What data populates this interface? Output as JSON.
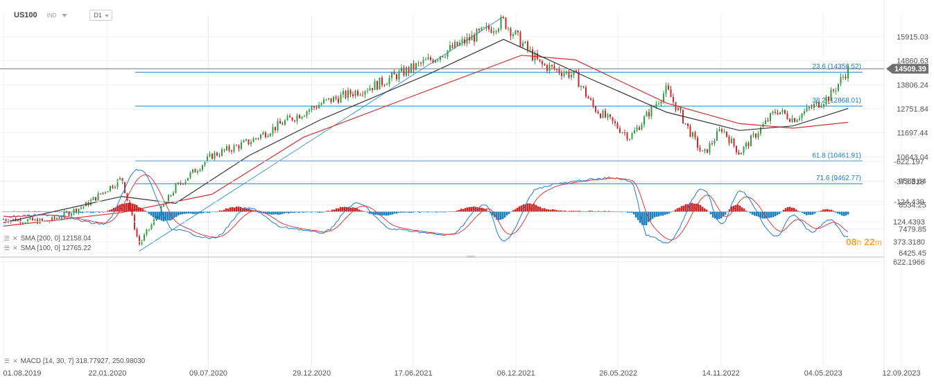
{
  "header": {
    "symbol": "US100",
    "instrument_type": "IND",
    "timeframe": "D1"
  },
  "timer": {
    "hours": "08",
    "hours_unit": "h",
    "minutes": "22",
    "minutes_unit": "m"
  },
  "indicators": {
    "sma200_label": "SMA [200, 0] 12158.04",
    "sma100_label": "SMA [100, 0] 12765.22",
    "macd_label": "MACD [14, 30, 7] 318.77927, 250.98030"
  },
  "colors": {
    "up": "#2e9e3e",
    "down": "#d0242b",
    "sma200": "#d32f2f",
    "sma100": "#333333",
    "fib": "#1a7fc1",
    "macd_line": "#1f7bd1",
    "signal_line": "#d9393e",
    "hist_pos": "#1b7fbf",
    "hist_neg": "#c92525",
    "price_tag": "#6f6f6f"
  },
  "chart_data": [
    {
      "type": "candlestick",
      "title": "US100",
      "timeframe": "D1",
      "x_tick_labels": [
        "01.08.2019",
        "22.01.2020",
        "09.07.2020",
        "29.12.2020",
        "17.06.2021",
        "06.12.2021",
        "26.05.2022",
        "14.11.2022",
        "04.05.2023",
        "12.09.2023"
      ],
      "y_tick_labels": [
        "15915.03",
        "14860.63",
        "13806.24",
        "12751.84",
        "11697.44",
        "10643.04",
        "9588.64",
        "8534.25",
        "7479.85",
        "6425.45"
      ],
      "last_price": "14509.39",
      "price_path": [
        [
          "01.08.2019",
          7900
        ],
        [
          "2019-10",
          7800
        ],
        [
          "2019-12",
          8500
        ],
        [
          "2020-02",
          9700
        ],
        [
          "2020-03",
          6800
        ],
        [
          "2020-05",
          9300
        ],
        [
          "2020-07",
          10700
        ],
        [
          "2020-09",
          11300
        ],
        [
          "2020-11",
          12200
        ],
        [
          "2021-01",
          13000
        ],
        [
          "2021-04",
          13800
        ],
        [
          "2021-07",
          14900
        ],
        [
          "2021-11",
          16600
        ],
        [
          "2022-01",
          14700
        ],
        [
          "2022-03",
          14200
        ],
        [
          "2022-04",
          12800
        ],
        [
          "2022-06",
          11500
        ],
        [
          "2022-08",
          13600
        ],
        [
          "2022-10",
          10700
        ],
        [
          "2022-11",
          11900
        ],
        [
          "2022-12",
          10800
        ],
        [
          "2023-02",
          12700
        ],
        [
          "2023-03",
          12300
        ],
        [
          "2023-05",
          13300
        ],
        [
          "2023-06",
          14500
        ]
      ],
      "sma200_path": [
        [
          "01.08.2019",
          7600
        ],
        [
          "2020-02",
          8200
        ],
        [
          "2020-07",
          9000
        ],
        [
          "2020-12",
          11500
        ],
        [
          "2021-06",
          13300
        ],
        [
          "2021-12",
          15100
        ],
        [
          "2022-03",
          14900
        ],
        [
          "2022-08",
          13000
        ],
        [
          "2022-12",
          12100
        ],
        [
          "2023-03",
          11900
        ],
        [
          "2023-06",
          12158.04
        ]
      ],
      "sma100_path": [
        [
          "01.08.2019",
          7750
        ],
        [
          "2020-02",
          8900
        ],
        [
          "2020-05",
          8600
        ],
        [
          "2020-09",
          10700
        ],
        [
          "2021-01",
          12300
        ],
        [
          "2021-07",
          14300
        ],
        [
          "2021-11",
          15800
        ],
        [
          "2022-04",
          14000
        ],
        [
          "2022-08",
          12600
        ],
        [
          "2022-12",
          11800
        ],
        [
          "2023-03",
          12000
        ],
        [
          "2023-06",
          12765.22
        ]
      ],
      "trendline": [
        [
          "2020-03",
          6500
        ],
        [
          "2021-11",
          16800
        ]
      ],
      "fibonacci": [
        {
          "label": "23.6 (14356.52)",
          "level": 14356.52
        },
        {
          "label": "38.2 (12868.01)",
          "level": 12868.01
        },
        {
          "label": "61.8 (10461.91)",
          "level": 10461.91
        },
        {
          "label": "71.6 (9462.77)",
          "level": 9462.77
        }
      ],
      "series": [
        {
          "name": "SMA [200, 0] 12158.04",
          "last_value": 12158.04
        },
        {
          "name": "SMA [100, 0] 12765.22",
          "last_value": 12765.22
        }
      ]
    },
    {
      "type": "line",
      "title": "MACD [14, 30, 7] 318.77927, 250.98030",
      "y_tick_labels": [
        "622.1966",
        "373.3180",
        "124.4393",
        "-124.439",
        "-373.318",
        "-622.197"
      ],
      "macd_last": 318.77927,
      "signal_last": 250.9803,
      "macd_path": [
        [
          "01.08.2019",
          60
        ],
        [
          "2019-10",
          40
        ],
        [
          "2020-01",
          150
        ],
        [
          "2020-03",
          -520
        ],
        [
          "2020-05",
          230
        ],
        [
          "2020-07",
          330
        ],
        [
          "2020-09",
          -40
        ],
        [
          "2020-11",
          200
        ],
        [
          "2021-01",
          260
        ],
        [
          "2021-03",
          -100
        ],
        [
          "2021-05",
          220
        ],
        [
          "2021-08",
          290
        ],
        [
          "2021-10",
          -80
        ],
        [
          "2021-11",
          360
        ],
        [
          "2022-01",
          -300
        ],
        [
          "2022-02",
          -350
        ],
        [
          "2022-04",
          -400
        ],
        [
          "2022-05",
          -420
        ],
        [
          "2022-06",
          -380
        ],
        [
          "2022-07",
          300
        ],
        [
          "2022-08",
          390
        ],
        [
          "2022-10",
          -280
        ],
        [
          "2022-11",
          150
        ],
        [
          "2022-12",
          -250
        ],
        [
          "2023-02",
          300
        ],
        [
          "2023-03",
          40
        ],
        [
          "2023-04",
          250
        ],
        [
          "2023-05",
          100
        ],
        [
          "2023-06",
          318.78
        ]
      ]
    }
  ]
}
